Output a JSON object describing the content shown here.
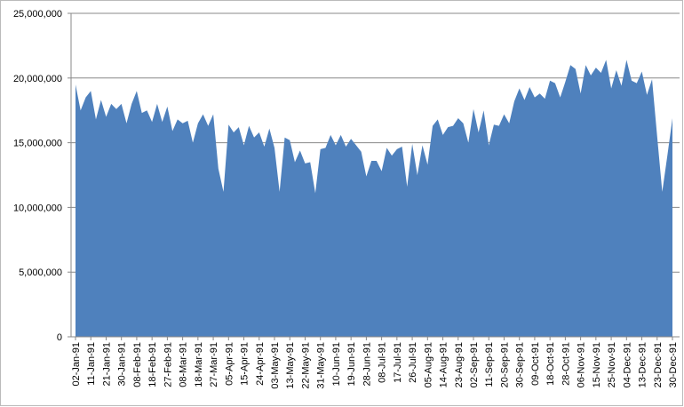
{
  "chart_data": {
    "type": "area",
    "color": "#4f81bd",
    "grid": true,
    "categories": [
      "02-Jan-91",
      null,
      null,
      "11-Jan-91",
      null,
      null,
      "21-Jan-91",
      null,
      null,
      "30-Jan-91",
      null,
      null,
      "08-Feb-91",
      null,
      null,
      "18-Feb-91",
      null,
      null,
      "27-Feb-91",
      null,
      null,
      "08-Mar-91",
      null,
      null,
      "18-Mar-91",
      null,
      null,
      "27-Mar-91",
      null,
      null,
      "05-Apr-91",
      null,
      null,
      "15-Apr-91",
      null,
      null,
      "24-Apr-91",
      null,
      null,
      "03-May-91",
      null,
      null,
      "13-May-91",
      null,
      null,
      "22-May-91",
      null,
      null,
      "31-May-91",
      null,
      null,
      "10-Jun-91",
      null,
      null,
      "19-Jun-91",
      null,
      null,
      "28-Jun-91",
      null,
      null,
      "08-Jul-91",
      null,
      null,
      "17-Jul-91",
      null,
      null,
      "26-Jul-91",
      null,
      null,
      "05-Aug-91",
      null,
      null,
      "14-Aug-91",
      null,
      null,
      "23-Aug-91",
      null,
      null,
      "02-Sep-91",
      null,
      null,
      "11-Sep-91",
      null,
      null,
      "20-Sep-91",
      null,
      null,
      "30-Sep-91",
      null,
      null,
      "09-Oct-91",
      null,
      null,
      "18-Oct-91",
      null,
      null,
      "28-Oct-91",
      null,
      null,
      "06-Nov-91",
      null,
      null,
      "15-Nov-91",
      null,
      null,
      "25-Nov-91",
      null,
      null,
      "04-Dec-91",
      null,
      null,
      "13-Dec-91",
      null,
      null,
      "23-Dec-91",
      null,
      null,
      "30-Dec-91"
    ],
    "values": [
      19500000,
      17500000,
      18500000,
      19000000,
      16800000,
      18300000,
      17000000,
      18000000,
      17600000,
      18000000,
      16500000,
      18000000,
      19000000,
      17300000,
      17500000,
      16600000,
      18000000,
      16600000,
      17800000,
      15900000,
      16800000,
      16500000,
      16700000,
      15000000,
      16500000,
      17200000,
      16300000,
      17200000,
      13000000,
      11200000,
      16400000,
      15800000,
      16200000,
      14800000,
      16300000,
      15400000,
      15800000,
      14700000,
      16100000,
      14600000,
      11200000,
      15400000,
      15200000,
      13500000,
      14400000,
      13400000,
      13500000,
      11100000,
      14500000,
      14600000,
      15600000,
      14800000,
      15600000,
      14700000,
      15300000,
      14800000,
      14300000,
      12400000,
      13600000,
      13600000,
      12800000,
      14600000,
      14000000,
      14500000,
      14700000,
      11600000,
      14900000,
      12500000,
      14800000,
      13300000,
      16300000,
      16800000,
      15600000,
      16200000,
      16300000,
      16900000,
      16500000,
      15000000,
      17600000,
      15800000,
      17500000,
      14800000,
      16400000,
      16300000,
      17200000,
      16500000,
      18200000,
      19200000,
      18300000,
      19300000,
      18500000,
      18800000,
      18400000,
      19800000,
      19600000,
      18500000,
      19700000,
      21000000,
      20700000,
      18800000,
      21000000,
      20200000,
      20800000,
      20400000,
      21400000,
      19200000,
      20600000,
      19400000,
      21400000,
      19800000,
      19600000,
      20500000,
      18700000,
      19900000,
      15500000,
      11200000,
      14000000,
      16900000
    ],
    "ylim": [
      0,
      25000000
    ],
    "yticks": [
      {
        "value": 0,
        "label": "0"
      },
      {
        "value": 5000000,
        "label": "5,000,000"
      },
      {
        "value": 10000000,
        "label": "10,000,000"
      },
      {
        "value": 15000000,
        "label": "15,000,000"
      },
      {
        "value": 20000000,
        "label": "20,000,000"
      },
      {
        "value": 25000000,
        "label": "25,000,000"
      }
    ]
  }
}
